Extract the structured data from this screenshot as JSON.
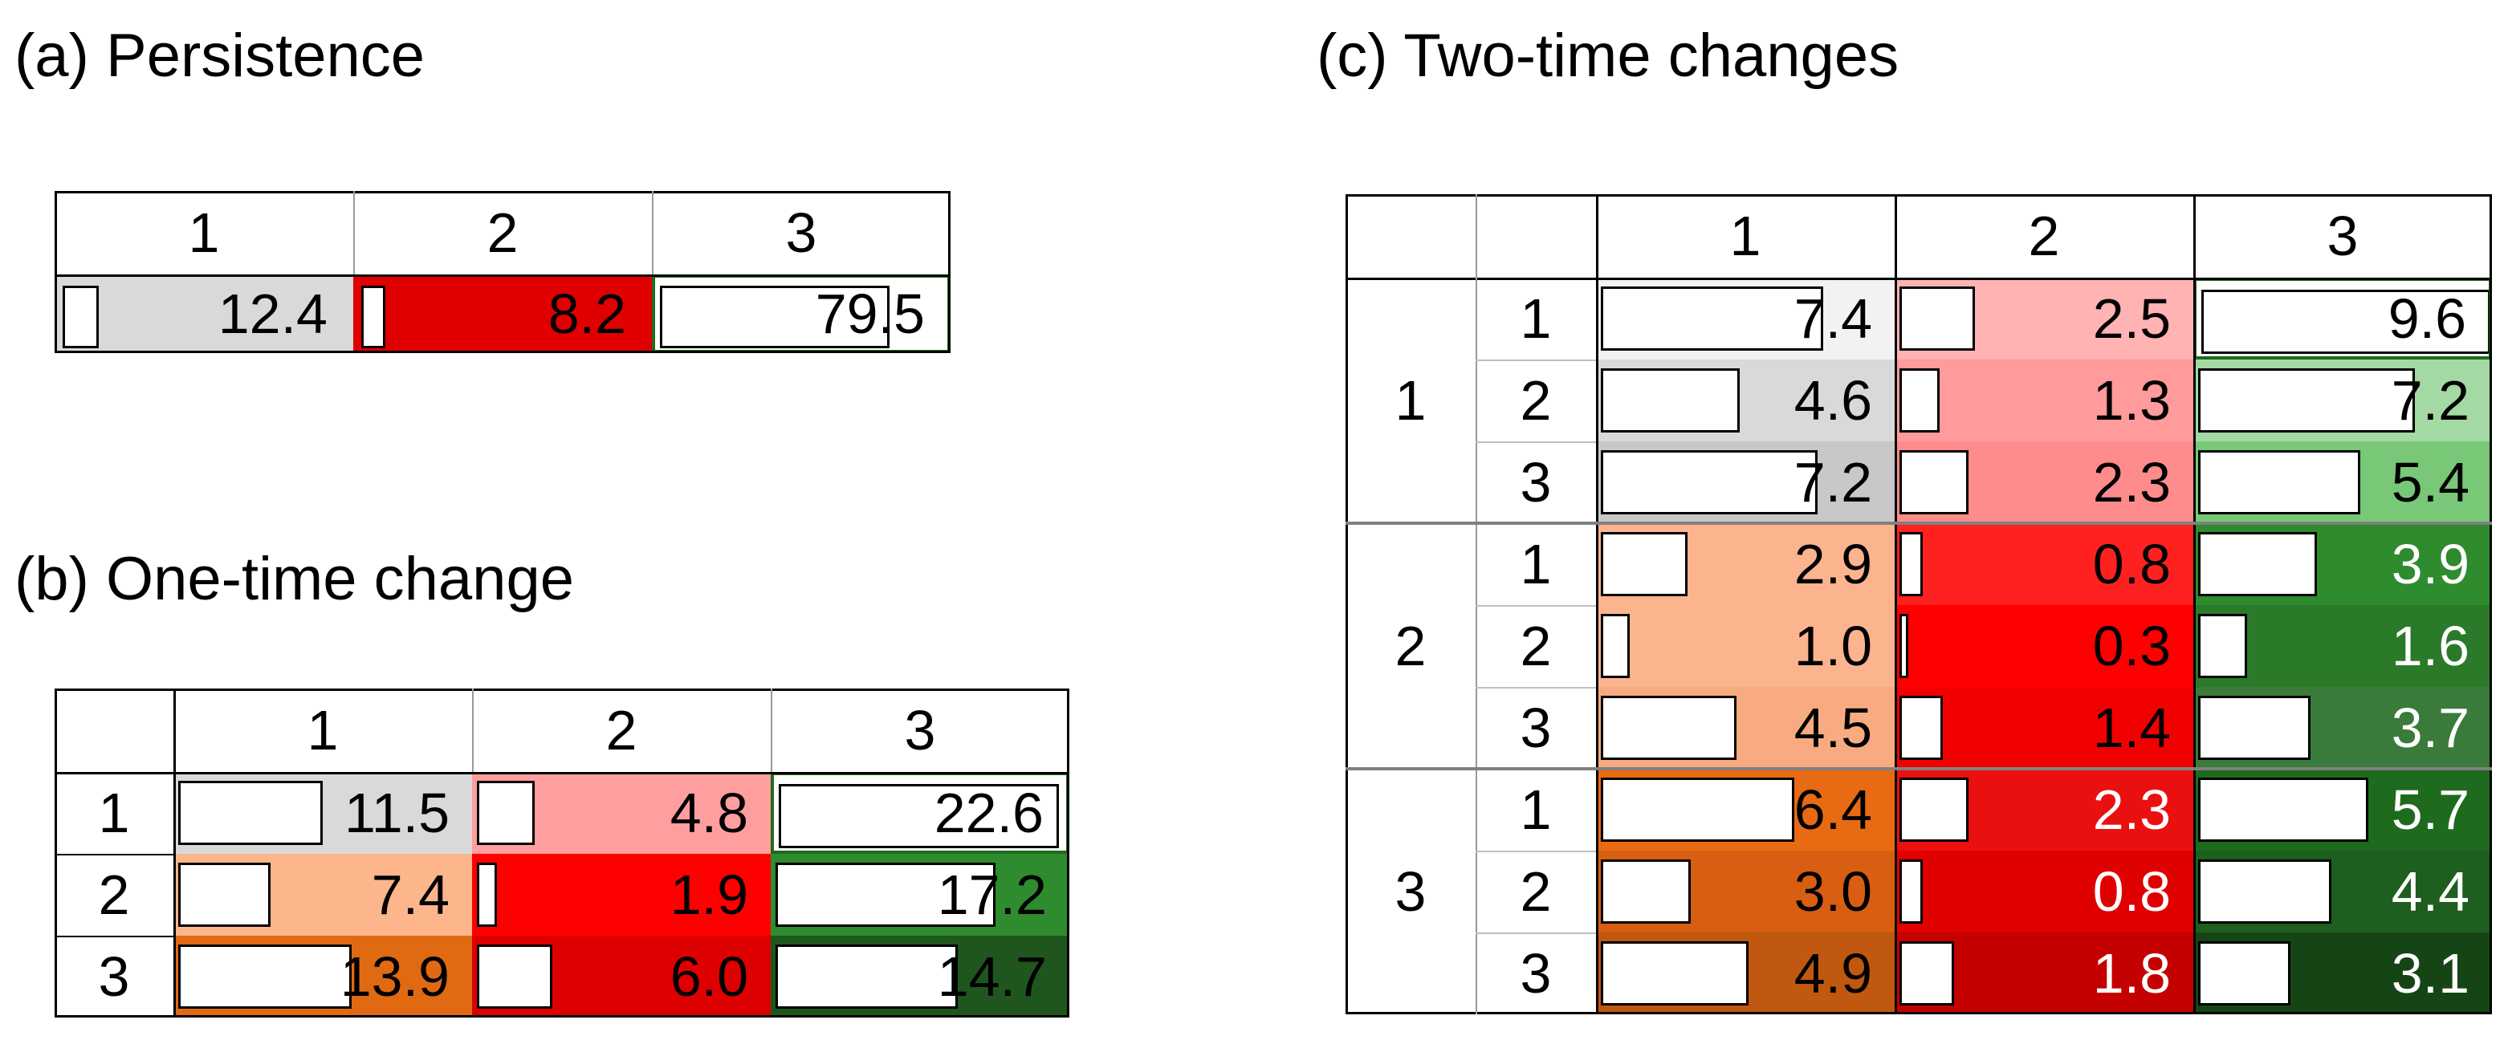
{
  "panels": {
    "a": {
      "title": "(a) Persistence",
      "col_headers": [
        "1",
        "2",
        "3"
      ],
      "cells": [
        {
          "value": "12.4",
          "fraction": 0.124,
          "bg": "#d9d9d9",
          "text": "#000000",
          "border": "#d9d9d9"
        },
        {
          "value": "8.2",
          "fraction": 0.082,
          "bg": "#e00000",
          "text": "#000000",
          "border": "#e00000"
        },
        {
          "value": "79.5",
          "fraction": 0.795,
          "bg": "#ffffff",
          "text": "#000000",
          "border": "#1e6b1e"
        }
      ]
    },
    "b": {
      "title": "(b) One-time change",
      "col_headers": [
        "1",
        "2",
        "3"
      ],
      "row_headers": [
        "1",
        "2",
        "3"
      ],
      "rows": [
        [
          {
            "value": "11.5",
            "fraction": 0.5,
            "bg": "#d9d9d9",
            "text": "#000000"
          },
          {
            "value": "4.8",
            "fraction": 0.2,
            "bg": "#ff9e9e",
            "text": "#000000"
          },
          {
            "value": "22.6",
            "fraction": 0.97,
            "bg": "#ffffff",
            "text": "#000000",
            "border": "#1e6b1e"
          }
        ],
        [
          {
            "value": "7.4",
            "fraction": 0.32,
            "bg": "#fdb58c",
            "text": "#000000"
          },
          {
            "value": "1.9",
            "fraction": 0.07,
            "bg": "#ff0000",
            "text": "#000000"
          },
          {
            "value": "17.2",
            "fraction": 0.76,
            "bg": "#2e8b2e",
            "text": "#000000"
          }
        ],
        [
          {
            "value": "13.9",
            "fraction": 0.6,
            "bg": "#e06a12",
            "text": "#000000"
          },
          {
            "value": "6.0",
            "fraction": 0.26,
            "bg": "#dd0000",
            "text": "#000000"
          },
          {
            "value": "14.7",
            "fraction": 0.63,
            "bg": "#1e561e",
            "text": "#000000"
          }
        ]
      ]
    },
    "c": {
      "title": "(c) Two-time changes",
      "col_headers": [
        "1",
        "2",
        "3"
      ],
      "outer_row_headers": [
        "1",
        "2",
        "3"
      ],
      "inner_row_headers": [
        "1",
        "2",
        "3",
        "1",
        "2",
        "3",
        "1",
        "2",
        "3"
      ],
      "rows": [
        [
          {
            "value": "7.4",
            "fraction": 0.77,
            "bg": "#f2f2f2",
            "text": "#000000"
          },
          {
            "value": "2.5",
            "fraction": 0.26,
            "bg": "#ffb3b3",
            "text": "#000000"
          },
          {
            "value": "9.6",
            "fraction": 1.0,
            "bg": "#ffffff",
            "text": "#000000",
            "border": "#1e6b1e"
          }
        ],
        [
          {
            "value": "4.6",
            "fraction": 0.48,
            "bg": "#d9d9d9",
            "text": "#000000"
          },
          {
            "value": "1.3",
            "fraction": 0.14,
            "bg": "#ff9b9b",
            "text": "#000000"
          },
          {
            "value": "7.2",
            "fraction": 0.75,
            "bg": "#a3d9a3",
            "text": "#000000"
          }
        ],
        [
          {
            "value": "7.2",
            "fraction": 0.75,
            "bg": "#c8c8c8",
            "text": "#000000"
          },
          {
            "value": "2.3",
            "fraction": 0.24,
            "bg": "#ff8c8c",
            "text": "#000000"
          },
          {
            "value": "5.4",
            "fraction": 0.56,
            "bg": "#78c878",
            "text": "#000000"
          }
        ],
        [
          {
            "value": "2.9",
            "fraction": 0.3,
            "bg": "#fbb48e",
            "text": "#000000"
          },
          {
            "value": "0.8",
            "fraction": 0.08,
            "bg": "#ff2020",
            "text": "#000000"
          },
          {
            "value": "3.9",
            "fraction": 0.41,
            "bg": "#2e8b2e",
            "text": "#ffffff"
          }
        ],
        [
          {
            "value": "1.0",
            "fraction": 0.1,
            "bg": "#fbb48e",
            "text": "#000000"
          },
          {
            "value": "0.3",
            "fraction": 0.03,
            "bg": "#ff0000",
            "text": "#000000"
          },
          {
            "value": "1.6",
            "fraction": 0.17,
            "bg": "#2a7a2a",
            "text": "#ffffff"
          }
        ],
        [
          {
            "value": "4.5",
            "fraction": 0.47,
            "bg": "#f8ab80",
            "text": "#000000"
          },
          {
            "value": "1.4",
            "fraction": 0.15,
            "bg": "#f20000",
            "text": "#000000"
          },
          {
            "value": "3.7",
            "fraction": 0.39,
            "bg": "#3a7a3a",
            "text": "#ffffff"
          }
        ],
        [
          {
            "value": "6.4",
            "fraction": 0.67,
            "bg": "#e86a12",
            "text": "#000000"
          },
          {
            "value": "2.3",
            "fraction": 0.24,
            "bg": "#ea1010",
            "text": "#ffffff"
          },
          {
            "value": "5.7",
            "fraction": 0.59,
            "bg": "#1e6b1e",
            "text": "#ffffff"
          }
        ],
        [
          {
            "value": "3.0",
            "fraction": 0.31,
            "bg": "#d85e12",
            "text": "#000000"
          },
          {
            "value": "0.8",
            "fraction": 0.08,
            "bg": "#e00000",
            "text": "#ffffff"
          },
          {
            "value": "4.4",
            "fraction": 0.46,
            "bg": "#1e5e1e",
            "text": "#ffffff"
          }
        ],
        [
          {
            "value": "4.9",
            "fraction": 0.51,
            "bg": "#c0580f",
            "text": "#000000"
          },
          {
            "value": "1.8",
            "fraction": 0.19,
            "bg": "#c40000",
            "text": "#ffffff"
          },
          {
            "value": "3.1",
            "fraction": 0.32,
            "bg": "#154515",
            "text": "#ffffff"
          }
        ]
      ]
    }
  }
}
